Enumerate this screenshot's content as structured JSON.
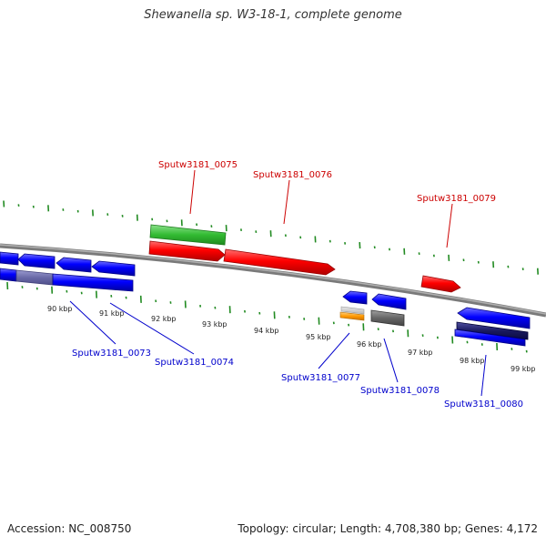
{
  "title": "Shewanella sp. W3-18-1, complete genome",
  "footer": {
    "accession": "Accession: NC_008750",
    "topology": "Topology: circular; Length: 4,708,380 bp; Genes: 4,172"
  },
  "ticks": [
    "90 kbp",
    "91 kbp",
    "92 kbp",
    "93 kbp",
    "94 kbp",
    "95 kbp",
    "96 kbp",
    "97 kbp",
    "98 kbp",
    "99 kbp"
  ],
  "labels": {
    "forward": [
      "Sputw3181_0075",
      "Sputw3181_0076",
      "Sputw3181_0079"
    ],
    "reverse": [
      "Sputw3181_0073",
      "Sputw3181_0074",
      "Sputw3181_0077",
      "Sputw3181_0078",
      "Sputw3181_0080"
    ]
  },
  "colors": {
    "forward_label": "#cc0000",
    "reverse_label": "#0000cc",
    "backbone": "#808080",
    "gc_skew": "#228b22",
    "gene_forward": "#ff0000",
    "gene_reverse": "#0000ff",
    "rna": "#33cc33",
    "misc": "#ff9900",
    "pseudo": "#666666"
  }
}
